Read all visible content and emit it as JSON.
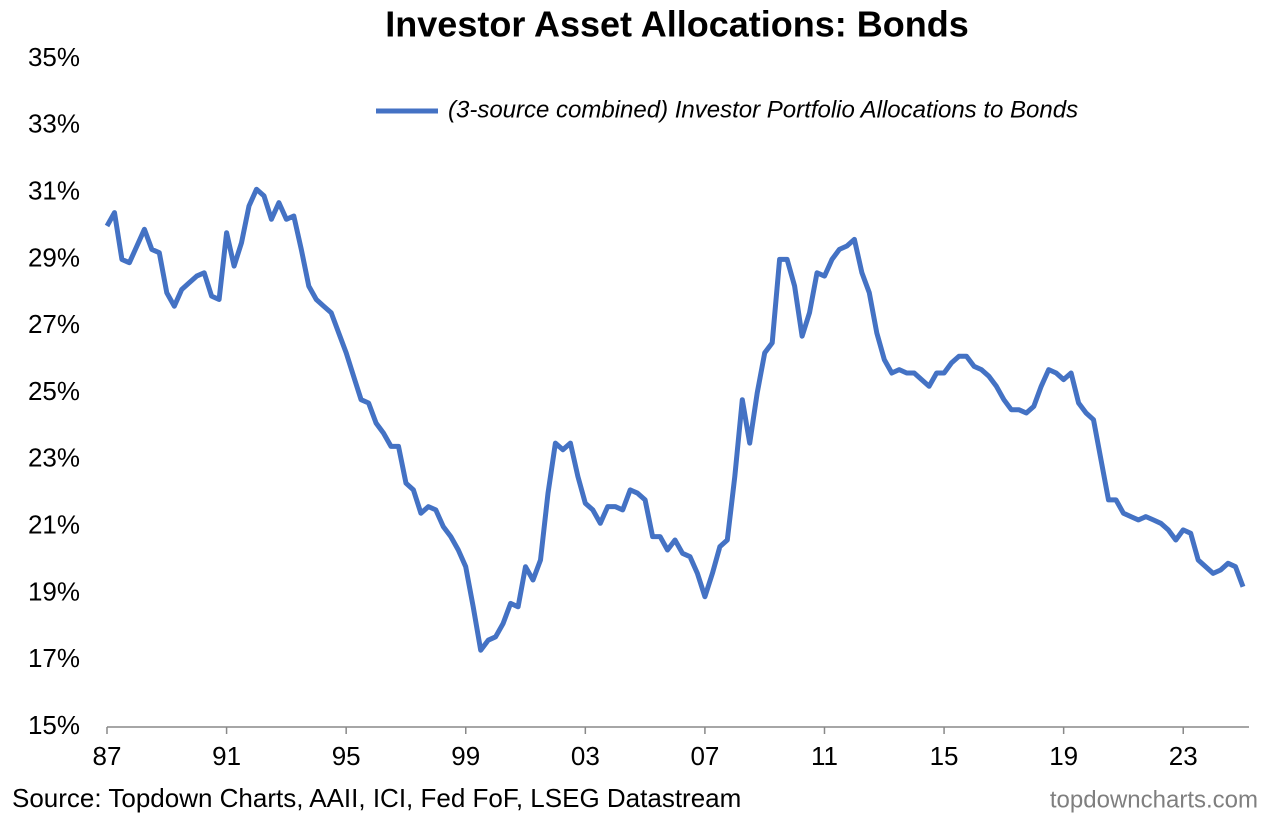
{
  "chart_data": {
    "type": "line",
    "title": "Investor Asset Allocations: Bonds",
    "source": "Source: Topdown Charts, AAII, ICI, Fed FoF, LSEG Datastream",
    "watermark": "topdowncharts.com",
    "legend": "top",
    "x": [
      1987,
      1987.25,
      1987.5,
      1987.75,
      1988,
      1988.25,
      1988.5,
      1988.75,
      1989,
      1989.25,
      1989.5,
      1989.75,
      1990,
      1990.25,
      1990.5,
      1990.75,
      1991,
      1991.25,
      1991.5,
      1991.75,
      1992,
      1992.25,
      1992.5,
      1992.75,
      1993,
      1993.25,
      1993.5,
      1993.75,
      1994,
      1994.25,
      1994.5,
      1994.75,
      1995,
      1995.25,
      1995.5,
      1995.75,
      1996,
      1996.25,
      1996.5,
      1996.75,
      1997,
      1997.25,
      1997.5,
      1997.75,
      1998,
      1998.25,
      1998.5,
      1998.75,
      1999,
      1999.25,
      1999.5,
      1999.75,
      2000,
      2000.25,
      2000.5,
      2000.75,
      2001,
      2001.25,
      2001.5,
      2001.75,
      2002,
      2002.25,
      2002.5,
      2002.75,
      2003,
      2003.25,
      2003.5,
      2003.75,
      2004,
      2004.25,
      2004.5,
      2004.75,
      2005,
      2005.25,
      2005.5,
      2005.75,
      2006,
      2006.25,
      2006.5,
      2006.75,
      2007,
      2007.25,
      2007.5,
      2007.75,
      2008,
      2008.25,
      2008.5,
      2008.75,
      2009,
      2009.25,
      2009.5,
      2009.75,
      2010,
      2010.25,
      2010.5,
      2010.75,
      2011,
      2011.25,
      2011.5,
      2011.75,
      2012,
      2012.25,
      2012.5,
      2012.75,
      2013,
      2013.25,
      2013.5,
      2013.75,
      2014,
      2014.25,
      2014.5,
      2014.75,
      2015,
      2015.25,
      2015.5,
      2015.75,
      2016,
      2016.25,
      2016.5,
      2016.75,
      2017,
      2017.25,
      2017.5,
      2017.75,
      2018,
      2018.25,
      2018.5,
      2018.75,
      2019,
      2019.25,
      2019.5,
      2019.75,
      2020,
      2020.25,
      2020.5,
      2020.75,
      2021,
      2021.25,
      2021.5,
      2021.75,
      2022,
      2022.25,
      2022.5,
      2022.75,
      2023,
      2023.25,
      2023.5,
      2023.75,
      2024,
      2024.25,
      2024.5,
      2024.75,
      2025
    ],
    "series": [
      {
        "name": "(3-source combined) Investor Portfolio Allocations to Bonds",
        "color": "#4472c4",
        "values": [
          30.0,
          30.4,
          29.0,
          28.9,
          29.4,
          29.9,
          29.3,
          29.2,
          28.0,
          27.6,
          28.1,
          28.3,
          28.5,
          28.6,
          27.9,
          27.8,
          29.8,
          28.8,
          29.5,
          30.6,
          31.1,
          30.9,
          30.2,
          30.7,
          30.2,
          30.3,
          29.3,
          28.2,
          27.8,
          27.6,
          27.4,
          26.8,
          26.2,
          25.5,
          24.8,
          24.7,
          24.1,
          23.8,
          23.4,
          23.4,
          22.3,
          22.1,
          21.4,
          21.6,
          21.5,
          21.0,
          20.7,
          20.3,
          19.8,
          18.6,
          17.3,
          17.6,
          17.7,
          18.1,
          18.7,
          18.6,
          19.8,
          19.4,
          20.0,
          22.0,
          23.5,
          23.3,
          23.5,
          22.5,
          21.7,
          21.5,
          21.1,
          21.6,
          21.6,
          21.5,
          22.1,
          22.0,
          21.8,
          20.7,
          20.7,
          20.3,
          20.6,
          20.2,
          20.1,
          19.6,
          18.9,
          19.6,
          20.4,
          20.6,
          22.5,
          24.8,
          23.5,
          25.0,
          26.2,
          26.5,
          29.0,
          29.0,
          28.2,
          26.7,
          27.4,
          28.6,
          28.5,
          29.0,
          29.3,
          29.4,
          29.6,
          28.6,
          28.0,
          26.8,
          26.0,
          25.6,
          25.7,
          25.6,
          25.6,
          25.4,
          25.2,
          25.6,
          25.6,
          25.9,
          26.1,
          26.1,
          25.8,
          25.7,
          25.5,
          25.2,
          24.8,
          24.5,
          24.5,
          24.4,
          24.6,
          25.2,
          25.7,
          25.6,
          25.4,
          25.6,
          24.7,
          24.4,
          24.2,
          23.0,
          21.8,
          21.8,
          21.4,
          21.3,
          21.2,
          21.3,
          21.2,
          21.1,
          20.9,
          20.6,
          20.9,
          20.8,
          20.0,
          19.8,
          19.6,
          19.7,
          19.9,
          19.8,
          19.2
        ]
      }
    ],
    "xlim": [
      1987,
      2025.2
    ],
    "xticks": [
      {
        "value": 1987,
        "label": "87"
      },
      {
        "value": 1991,
        "label": "91"
      },
      {
        "value": 1995,
        "label": "95"
      },
      {
        "value": 1999,
        "label": "99"
      },
      {
        "value": 2003,
        "label": "03"
      },
      {
        "value": 2007,
        "label": "07"
      },
      {
        "value": 2011,
        "label": "11"
      },
      {
        "value": 2015,
        "label": "15"
      },
      {
        "value": 2019,
        "label": "19"
      },
      {
        "value": 2023,
        "label": "23"
      }
    ],
    "ylim": [
      15,
      35
    ],
    "yticks": [
      {
        "value": 15,
        "label": "15%"
      },
      {
        "value": 17,
        "label": "17%"
      },
      {
        "value": 19,
        "label": "19%"
      },
      {
        "value": 21,
        "label": "21%"
      },
      {
        "value": 23,
        "label": "23%"
      },
      {
        "value": 25,
        "label": "25%"
      },
      {
        "value": 27,
        "label": "27%"
      },
      {
        "value": 29,
        "label": "29%"
      },
      {
        "value": 31,
        "label": "31%"
      },
      {
        "value": 33,
        "label": "33%"
      },
      {
        "value": 35,
        "label": "35%"
      }
    ],
    "grid": false
  }
}
